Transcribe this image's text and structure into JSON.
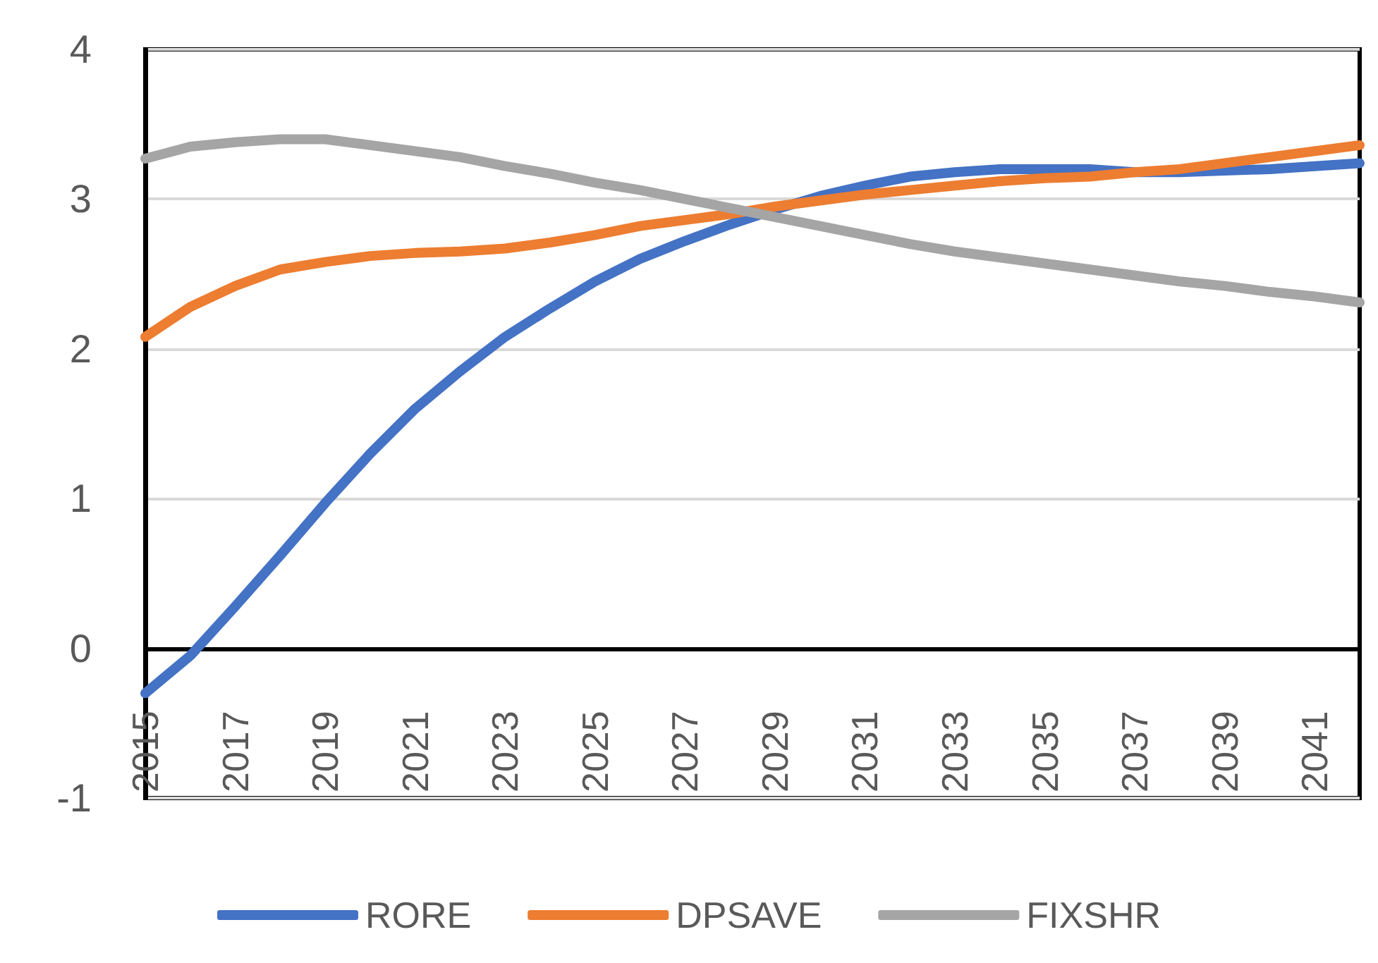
{
  "chart_data": {
    "type": "line",
    "categories": [
      "2015",
      null,
      "2017",
      null,
      "2019",
      null,
      "2021",
      null,
      "2023",
      null,
      "2025",
      null,
      "2027",
      null,
      "2029",
      null,
      "2031",
      null,
      "2033",
      null,
      "2035",
      null,
      "2037",
      null,
      "2039",
      null,
      "2041",
      null
    ],
    "series": [
      {
        "name": "RORE",
        "color": "#4472c4",
        "values": [
          -0.3,
          -0.05,
          0.28,
          0.62,
          0.97,
          1.3,
          1.6,
          1.85,
          2.08,
          2.27,
          2.45,
          2.6,
          2.72,
          2.83,
          2.93,
          3.02,
          3.09,
          3.15,
          3.18,
          3.2,
          3.2,
          3.2,
          3.18,
          3.18,
          3.19,
          3.2,
          3.22,
          3.24
        ]
      },
      {
        "name": "DPSAVE",
        "color": "#ed7d31",
        "values": [
          2.08,
          2.28,
          2.42,
          2.53,
          2.58,
          2.62,
          2.64,
          2.65,
          2.67,
          2.71,
          2.76,
          2.82,
          2.86,
          2.9,
          2.95,
          2.99,
          3.03,
          3.06,
          3.09,
          3.12,
          3.14,
          3.15,
          3.18,
          3.2,
          3.24,
          3.28,
          3.32,
          3.36
        ]
      },
      {
        "name": "FIXSHR",
        "color": "#a5a5a5",
        "values": [
          3.27,
          3.35,
          3.38,
          3.4,
          3.4,
          3.36,
          3.32,
          3.28,
          3.22,
          3.17,
          3.11,
          3.06,
          3.0,
          2.94,
          2.88,
          2.82,
          2.76,
          2.7,
          2.65,
          2.61,
          2.57,
          2.53,
          2.49,
          2.45,
          2.42,
          2.38,
          2.35,
          2.31
        ]
      }
    ],
    "ylim": [
      -1,
      4
    ],
    "yticks": [
      -1,
      0,
      1,
      2,
      3,
      4
    ],
    "grid": "y",
    "legend": "bottom",
    "marker": "none",
    "line_style": "solid"
  }
}
